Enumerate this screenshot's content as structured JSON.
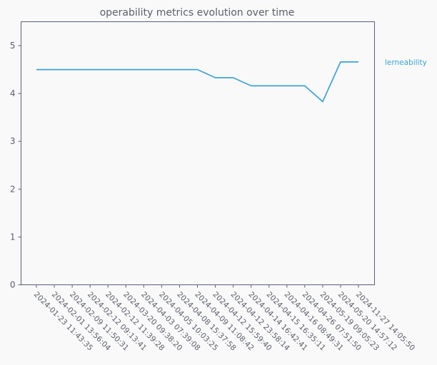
{
  "chart_data": {
    "type": "line",
    "title": "operability metrics evolution over time",
    "xlabel": "",
    "ylabel": "",
    "x": [
      "2024-01-23 11:43:35",
      "2024-02-01 13:56:04",
      "2024-02-09 11:50:31",
      "2024-02-12 09:13:41",
      "2024-02-12 11:39:28",
      "2024-03-20 09:38:20",
      "2024-04-03 07:39:08",
      "2024-04-05 10:03:25",
      "2024-04-08 15:37:58",
      "2024-04-09 11:08:42",
      "2024-04-12 15:59:40",
      "2024-04-12 23:58:14",
      "2024-04-14 16:42:41",
      "2024-04-15 16:35:11",
      "2024-04-16 08:49:31",
      "2024-04-26 07:51:50",
      "2024-05-19 09:05:23",
      "2024-05-20 14:57:12",
      "2024-11-27 14:05:50"
    ],
    "series": [
      {
        "name": "lerneability",
        "color": "#3aa3d6",
        "values": [
          4.5,
          4.5,
          4.5,
          4.5,
          4.5,
          4.5,
          4.5,
          4.5,
          4.5,
          4.5,
          4.33,
          4.33,
          4.16,
          4.16,
          4.16,
          4.16,
          3.83,
          4.66,
          4.66
        ]
      }
    ],
    "ylim": [
      0,
      5.5
    ],
    "yticks": [
      0,
      1,
      2,
      3,
      4,
      5
    ],
    "grid": false,
    "legend_position": "right"
  },
  "colors": {
    "background": "#f9f9f9",
    "axes_edge": "#5b5f7a",
    "text": "#5b5f6b"
  }
}
